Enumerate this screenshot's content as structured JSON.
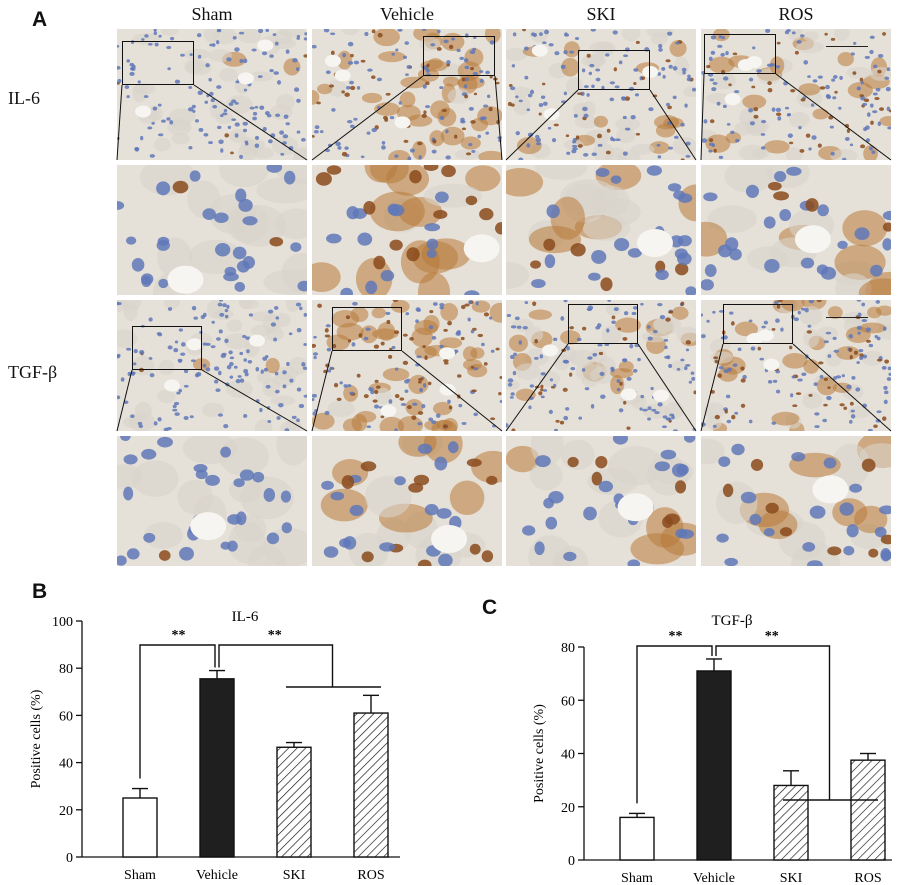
{
  "figure": {
    "panel_a_letter": "A",
    "panel_b_letter": "B",
    "panel_c_letter": "C",
    "columns": [
      "Sham",
      "Vehicle",
      "SKI",
      "ROS"
    ],
    "rows": [
      "IL-6",
      "TGF-β"
    ]
  },
  "colors": {
    "tissue_bg": "#e6e1d8",
    "nucleus_blue": "#5f78b8",
    "brown_stain": "#b87a3a",
    "bar_black": "#1f1f1f",
    "axis": "#111111"
  },
  "chart_data": [
    {
      "type": "bar",
      "title": "IL-6",
      "ylabel": "Positive cells (%)",
      "xlabel": "",
      "ylim": [
        0,
        100
      ],
      "yticks": [
        "0",
        "20",
        "40",
        "60",
        "80",
        "100"
      ],
      "categories": [
        "Sham",
        "Vehicle",
        "SKI",
        "ROS"
      ],
      "values": [
        25,
        75.5,
        46.5,
        61
      ],
      "errors": [
        4,
        3.5,
        2,
        7.5
      ],
      "fills": [
        "white",
        "black",
        "hatched",
        "hatched"
      ],
      "significance": [
        "**",
        "**"
      ],
      "grid": false
    },
    {
      "type": "bar",
      "title": "TGF-β",
      "ylabel": "Positive cells (%)",
      "xlabel": "",
      "ylim": [
        0,
        80
      ],
      "yticks": [
        "0",
        "20",
        "40",
        "60",
        "80"
      ],
      "categories": [
        "Sham",
        "Vehicle",
        "SKI",
        "ROS"
      ],
      "values": [
        16,
        71,
        28,
        37.5
      ],
      "errors": [
        1.5,
        4.5,
        5.5,
        2.5
      ],
      "fills": [
        "white",
        "black",
        "hatched",
        "hatched"
      ],
      "significance": [
        "**",
        "**"
      ],
      "grid": false
    }
  ]
}
